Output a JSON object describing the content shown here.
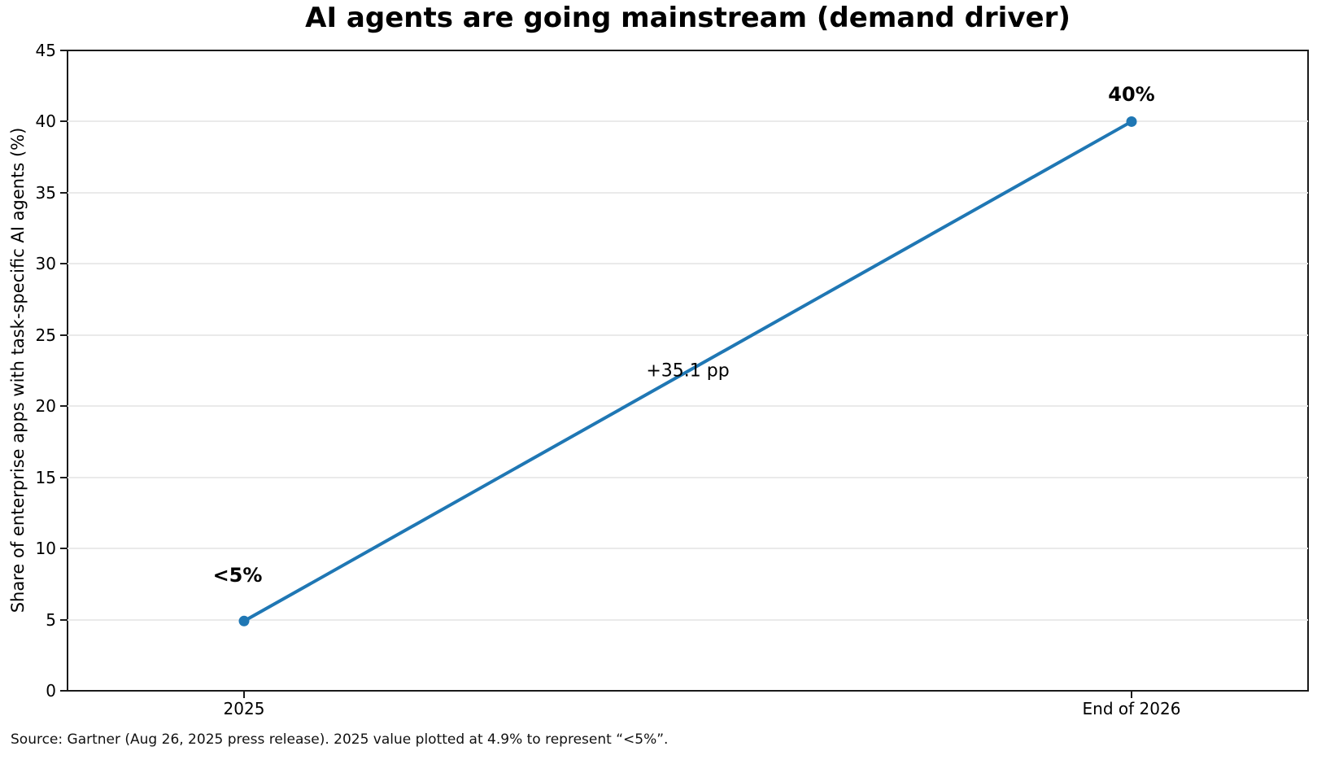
{
  "footnote": "Source: Gartner (Aug 26, 2025 press release). 2025 value plotted at 4.9% to represent “<5%”.",
  "chart_data": {
    "type": "line",
    "title": "AI agents are going mainstream (demand driver)",
    "categories": [
      "2025",
      "End of 2026"
    ],
    "values": [
      4.9,
      40
    ],
    "point_labels": [
      "<5%",
      "40%"
    ],
    "annotation": "+35.1 pp",
    "xlabel": "",
    "ylabel": "Share of enterprise apps with task-specific AI agents (%)",
    "ylim": [
      0,
      45
    ],
    "ytick_step": 5,
    "yticks": [
      0,
      5,
      10,
      15,
      20,
      25,
      30,
      35,
      40,
      45
    ],
    "grid": "horizontal-only",
    "legend": "none",
    "line_color": "#1f77b4",
    "marker": "circle",
    "grid_color": "#eaeaea",
    "spine_color": "#1a1a1a",
    "background_color": "#ffffff"
  }
}
